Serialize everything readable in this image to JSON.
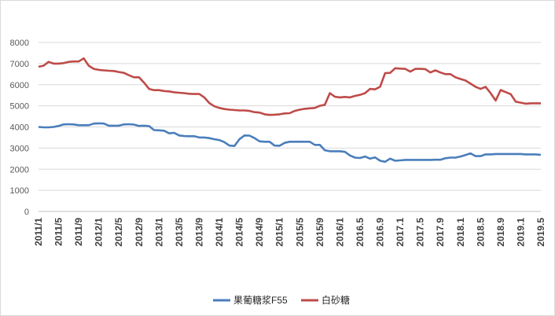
{
  "chart_data": {
    "type": "line",
    "title": "",
    "xlabel": "",
    "ylabel": "",
    "ylim": [
      0,
      8000
    ],
    "y_ticks": [
      0,
      1000,
      2000,
      3000,
      4000,
      5000,
      6000,
      7000,
      8000
    ],
    "grid": "horizontal",
    "legend_position": "bottom",
    "x": [
      "2011/1",
      "2011/2",
      "2011/3",
      "2011/4",
      "2011/5",
      "2011/6",
      "2011/7",
      "2011/8",
      "2011/9",
      "2011/10",
      "2011/11",
      "2011/12",
      "2012/1",
      "2012/2",
      "2012/3",
      "2012/4",
      "2012/5",
      "2012/6",
      "2012/7",
      "2012/8",
      "2012/9",
      "2012/10",
      "2012/11",
      "2012/12",
      "2013/1",
      "2013/2",
      "2013/3",
      "2013/4",
      "2013/5",
      "2013/6",
      "2013/7",
      "2013/8",
      "2013/9",
      "2013/10",
      "2013/11",
      "2013/12",
      "2014/1",
      "2014/2",
      "2014/3",
      "2014/4",
      "2014/5",
      "2014/6",
      "2014/7",
      "2014/8",
      "2014/9",
      "2014/10",
      "2014/11",
      "2014/12",
      "2015/1",
      "2015/2",
      "2015/3",
      "2015/4",
      "2015/5",
      "2015/6",
      "2015/7",
      "2015/8",
      "2015/9",
      "2015/10",
      "2015/11",
      "2015/12",
      "2016/1",
      "2016/2",
      "2016/3",
      "2016/4",
      "2016/5",
      "2016/6",
      "2016/7",
      "2016/8",
      "2016/9",
      "2016/10",
      "2016/11",
      "2016/12",
      "2017/1",
      "2017/2",
      "2017/3",
      "2017/4",
      "2017/5",
      "2017/6",
      "2017/7",
      "2017/8",
      "2017/9",
      "2017/10",
      "2017/11",
      "2017/12",
      "2018/1",
      "2018/2",
      "2018/3",
      "2018/4",
      "2018/5",
      "2018/6",
      "2018/7",
      "2018/8",
      "2018/9",
      "2018/10",
      "2018/11",
      "2018/12",
      "2019/1",
      "2019/2",
      "2019/3",
      "2019/4",
      "2019/5"
    ],
    "x_tick_labels": [
      "2011/1",
      "2011/5",
      "2011/9",
      "2012/1",
      "2012/5",
      "2012/9",
      "2013/1",
      "2013/5",
      "2013/9",
      "2014/1",
      "2014/5",
      "2014/9",
      "2015/1",
      "2015/5",
      "2015/9",
      "2016/1",
      "2016.5",
      "2016.9",
      "2017.1",
      "2017.5",
      "2017.9",
      "2018.1",
      "2018.5",
      "2018.9",
      "2019.1",
      "2019.5"
    ],
    "series": [
      {
        "name": "果葡糖浆F55",
        "color": "#4a7ebb",
        "values": [
          4000,
          3980,
          3980,
          4000,
          4050,
          4120,
          4130,
          4120,
          4080,
          4080,
          4080,
          4160,
          4170,
          4160,
          4060,
          4060,
          4060,
          4120,
          4130,
          4110,
          4050,
          4060,
          4040,
          3850,
          3840,
          3820,
          3700,
          3720,
          3600,
          3570,
          3560,
          3560,
          3500,
          3500,
          3470,
          3420,
          3380,
          3280,
          3120,
          3100,
          3420,
          3600,
          3590,
          3470,
          3320,
          3300,
          3300,
          3120,
          3110,
          3250,
          3300,
          3300,
          3300,
          3300,
          3300,
          3150,
          3150,
          2900,
          2850,
          2850,
          2850,
          2820,
          2650,
          2550,
          2530,
          2600,
          2500,
          2560,
          2400,
          2350,
          2500,
          2400,
          2420,
          2440,
          2440,
          2440,
          2440,
          2440,
          2440,
          2450,
          2450,
          2520,
          2550,
          2550,
          2600,
          2670,
          2750,
          2620,
          2620,
          2700,
          2700,
          2720,
          2720,
          2720,
          2720,
          2720,
          2720,
          2700,
          2700,
          2700,
          2680
        ]
      },
      {
        "name": "白砂糖",
        "color": "#be4b48",
        "values": [
          6850,
          6900,
          7080,
          7000,
          7000,
          7020,
          7080,
          7100,
          7100,
          7250,
          6900,
          6750,
          6700,
          6680,
          6660,
          6650,
          6600,
          6560,
          6450,
          6350,
          6350,
          6100,
          5800,
          5740,
          5740,
          5700,
          5680,
          5640,
          5620,
          5600,
          5570,
          5560,
          5560,
          5400,
          5130,
          4980,
          4900,
          4850,
          4820,
          4800,
          4780,
          4780,
          4760,
          4700,
          4680,
          4600,
          4570,
          4580,
          4600,
          4640,
          4650,
          4760,
          4820,
          4860,
          4880,
          4900,
          5000,
          5050,
          5600,
          5430,
          5400,
          5420,
          5400,
          5470,
          5520,
          5600,
          5800,
          5780,
          5900,
          6550,
          6560,
          6780,
          6760,
          6750,
          6620,
          6750,
          6750,
          6740,
          6580,
          6680,
          6580,
          6500,
          6500,
          6350,
          6270,
          6200,
          6050,
          5900,
          5800,
          5900,
          5600,
          5250,
          5750,
          5650,
          5550,
          5200,
          5150,
          5100,
          5120,
          5120,
          5120
        ]
      }
    ]
  }
}
